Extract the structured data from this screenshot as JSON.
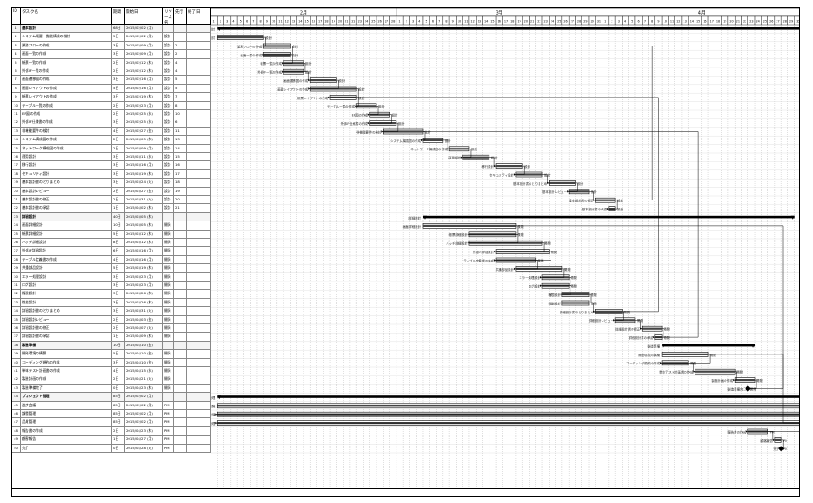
{
  "columns": {
    "id": "ID",
    "name": "タスク名",
    "duration": "期間",
    "start": "開始日",
    "resources": "リソース名",
    "predecessors": "先行",
    "finish": "終了日"
  },
  "timescale": {
    "major": [
      "2月",
      "3月",
      "4月"
    ],
    "minor_day_labels": [
      "1",
      "2",
      "3",
      "4",
      "5",
      "6",
      "7",
      "8",
      "9",
      "10",
      "11",
      "12",
      "13",
      "14",
      "15",
      "16",
      "17",
      "18",
      "19",
      "20",
      "21",
      "22",
      "23",
      "24",
      "25",
      "26",
      "27",
      "28",
      "29",
      "30",
      "31"
    ]
  },
  "tasks": [
    {
      "id": "1",
      "name": "基本設計",
      "dur": "68日",
      "start": "2015/02/02 (月)",
      "res": "",
      "pred": "",
      "summary": true
    },
    {
      "id": "2",
      "name": "システム概要・機能構成の検討",
      "dur": "5日",
      "start": "2015/02/02 (月)",
      "res": "設計",
      "pred": "",
      "summary": false
    },
    {
      "id": "3",
      "name": "業務フローの作成",
      "dur": "3日",
      "start": "2015/02/09 (月)",
      "res": "設計",
      "pred": "2",
      "summary": false
    },
    {
      "id": "4",
      "name": "画面一覧の作成",
      "dur": "3日",
      "start": "2015/02/09 (月)",
      "res": "設計",
      "pred": "2",
      "summary": false
    },
    {
      "id": "5",
      "name": "帳票一覧の作成",
      "dur": "2日",
      "start": "2015/02/12 (木)",
      "res": "設計",
      "pred": "4",
      "summary": false
    },
    {
      "id": "6",
      "name": "外部IF一覧の作成",
      "dur": "2日",
      "start": "2015/02/12 (木)",
      "res": "設計",
      "pred": "4",
      "summary": false
    },
    {
      "id": "7",
      "name": "画面遷移図の作成",
      "dur": "3日",
      "start": "2015/02/16 (月)",
      "res": "設計",
      "pred": "5",
      "summary": false
    },
    {
      "id": "8",
      "name": "画面レイアウトの作成",
      "dur": "5日",
      "start": "2015/02/16 (月)",
      "res": "設計",
      "pred": "5",
      "summary": false
    },
    {
      "id": "9",
      "name": "帳票レイアウトの作成",
      "dur": "3日",
      "start": "2015/02/19 (木)",
      "res": "設計",
      "pred": "7",
      "summary": false
    },
    {
      "id": "10",
      "name": "テーブル一覧の作成",
      "dur": "2日",
      "start": "2015/02/23 (月)",
      "res": "設計",
      "pred": "8",
      "summary": false
    },
    {
      "id": "11",
      "name": "ER図の作成",
      "dur": "2日",
      "start": "2015/02/25 (水)",
      "res": "設計",
      "pred": "10",
      "summary": false
    },
    {
      "id": "12",
      "name": "外部IF仕様書の作成",
      "dur": "3日",
      "start": "2015/02/25 (水)",
      "res": "設計",
      "pred": "6",
      "summary": false
    },
    {
      "id": "13",
      "name": "非機能要件の検討",
      "dur": "4日",
      "start": "2015/02/27 (金)",
      "res": "設計",
      "pred": "11",
      "summary": false
    },
    {
      "id": "14",
      "name": "システム構成図の作成",
      "dur": "2日",
      "start": "2015/03/05 (木)",
      "res": "設計",
      "pred": "13",
      "summary": false
    },
    {
      "id": "15",
      "name": "ネットワーク構成図の作成",
      "dur": "2日",
      "start": "2015/03/09 (月)",
      "res": "設計",
      "pred": "14",
      "summary": false
    },
    {
      "id": "16",
      "name": "運用設計",
      "dur": "3日",
      "start": "2015/03/11 (水)",
      "res": "設計",
      "pred": "15",
      "summary": false
    },
    {
      "id": "17",
      "name": "移行設計",
      "dur": "3日",
      "start": "2015/03/16 (月)",
      "res": "設計",
      "pred": "16",
      "summary": false
    },
    {
      "id": "18",
      "name": "セキュリティ設計",
      "dur": "3日",
      "start": "2015/03/19 (木)",
      "res": "設計",
      "pred": "17",
      "summary": false
    },
    {
      "id": "19",
      "name": "基本設計書のとりまとめ",
      "dur": "3日",
      "start": "2015/03/24 (火)",
      "res": "設計",
      "pred": "18",
      "summary": false
    },
    {
      "id": "20",
      "name": "基本設計レビュー",
      "dur": "2日",
      "start": "2015/03/27 (金)",
      "res": "設計",
      "pred": "19",
      "summary": false
    },
    {
      "id": "21",
      "name": "基本設計書の修正",
      "dur": "2日",
      "start": "2015/03/31 (火)",
      "res": "設計",
      "pred": "20",
      "summary": false
    },
    {
      "id": "22",
      "name": "基本設計書の承認",
      "dur": "1日",
      "start": "2015/04/02 (木)",
      "res": "設計",
      "pred": "21",
      "summary": false
    },
    {
      "id": "23",
      "name": "詳細設計",
      "dur": "40日",
      "start": "2015/03/05 (木)",
      "res": "",
      "pred": "",
      "summary": true
    },
    {
      "id": "24",
      "name": "画面詳細設計",
      "dur": "10日",
      "start": "2015/03/05 (木)",
      "res": "開発",
      "pred": "",
      "summary": false
    },
    {
      "id": "25",
      "name": "帳票詳細設計",
      "dur": "5日",
      "start": "2015/03/12 (木)",
      "res": "開発",
      "pred": "",
      "summary": false
    },
    {
      "id": "26",
      "name": "バッチ詳細設計",
      "dur": "8日",
      "start": "2015/03/12 (木)",
      "res": "開発",
      "pred": "",
      "summary": false
    },
    {
      "id": "27",
      "name": "外部IF詳細設計",
      "dur": "6日",
      "start": "2015/03/16 (月)",
      "res": "開発",
      "pred": "",
      "summary": false
    },
    {
      "id": "28",
      "name": "テーブル定義書の作成",
      "dur": "4日",
      "start": "2015/03/16 (月)",
      "res": "開発",
      "pred": "",
      "summary": false
    },
    {
      "id": "29",
      "name": "共通部品設計",
      "dur": "5日",
      "start": "2015/03/19 (木)",
      "res": "開発",
      "pred": "",
      "summary": false
    },
    {
      "id": "30",
      "name": "エラー処理設計",
      "dur": "3日",
      "start": "2015/03/23 (月)",
      "res": "開発",
      "pred": "",
      "summary": false
    },
    {
      "id": "31",
      "name": "ログ設計",
      "dur": "3日",
      "start": "2015/03/23 (月)",
      "res": "開発",
      "pred": "",
      "summary": false
    },
    {
      "id": "32",
      "name": "権限設計",
      "dur": "3日",
      "start": "2015/03/26 (木)",
      "res": "開発",
      "pred": "",
      "summary": false
    },
    {
      "id": "33",
      "name": "性能設計",
      "dur": "3日",
      "start": "2015/03/26 (木)",
      "res": "開発",
      "pred": "",
      "summary": false
    },
    {
      "id": "34",
      "name": "詳細設計書のとりまとめ",
      "dur": "3日",
      "start": "2015/03/31 (火)",
      "res": "開発",
      "pred": "",
      "summary": false
    },
    {
      "id": "35",
      "name": "詳細設計レビュー",
      "dur": "2日",
      "start": "2015/04/03 (金)",
      "res": "開発",
      "pred": "",
      "summary": false
    },
    {
      "id": "36",
      "name": "詳細設計書の修正",
      "dur": "2日",
      "start": "2015/04/07 (火)",
      "res": "開発",
      "pred": "",
      "summary": false
    },
    {
      "id": "37",
      "name": "詳細設計書の承認",
      "dur": "1日",
      "start": "2015/04/09 (木)",
      "res": "開発",
      "pred": "",
      "summary": false
    },
    {
      "id": "38",
      "name": "製造準備",
      "dur": "10日",
      "start": "2015/04/10 (金)",
      "res": "",
      "pred": "",
      "summary": true
    },
    {
      "id": "39",
      "name": "開発環境の構築",
      "dur": "5日",
      "start": "2015/04/10 (金)",
      "res": "開発",
      "pred": "",
      "summary": false
    },
    {
      "id": "40",
      "name": "コーディング規約の作成",
      "dur": "3日",
      "start": "2015/04/10 (金)",
      "res": "開発",
      "pred": "",
      "summary": false
    },
    {
      "id": "41",
      "name": "単体テスト計画書の作成",
      "dur": "4日",
      "start": "2015/04/15 (水)",
      "res": "開発",
      "pred": "",
      "summary": false
    },
    {
      "id": "42",
      "name": "製造計画の作成",
      "dur": "2日",
      "start": "2015/04/21 (火)",
      "res": "開発",
      "pred": "",
      "summary": false
    },
    {
      "id": "43",
      "name": "製造準備完了",
      "dur": "0日",
      "start": "2015/04/23 (木)",
      "res": "開発",
      "pred": "",
      "summary": false
    },
    {
      "id": "44",
      "name": "プロジェクト管理",
      "dur": "85日",
      "start": "2015/02/02 (月)",
      "res": "",
      "pred": "",
      "summary": true
    },
    {
      "id": "45",
      "name": "進捗会議",
      "dur": "85日",
      "start": "2015/02/02 (月)",
      "res": "PM",
      "pred": "",
      "summary": false
    },
    {
      "id": "46",
      "name": "課題管理",
      "dur": "85日",
      "start": "2015/02/02 (月)",
      "res": "PM",
      "pred": "",
      "summary": false
    },
    {
      "id": "47",
      "name": "品質管理",
      "dur": "85日",
      "start": "2015/02/02 (月)",
      "res": "PM",
      "pred": "",
      "summary": false
    },
    {
      "id": "48",
      "name": "報告書の作成",
      "dur": "2日",
      "start": "2015/04/23 (木)",
      "res": "PM",
      "pred": "",
      "summary": false
    },
    {
      "id": "49",
      "name": "顧客報告",
      "dur": "1日",
      "start": "2015/04/27 (月)",
      "res": "PM",
      "pred": "",
      "summary": false
    },
    {
      "id": "50",
      "name": "完了",
      "dur": "0日",
      "start": "2015/04/28 (火)",
      "res": "PM",
      "pred": "",
      "summary": false
    }
  ]
}
